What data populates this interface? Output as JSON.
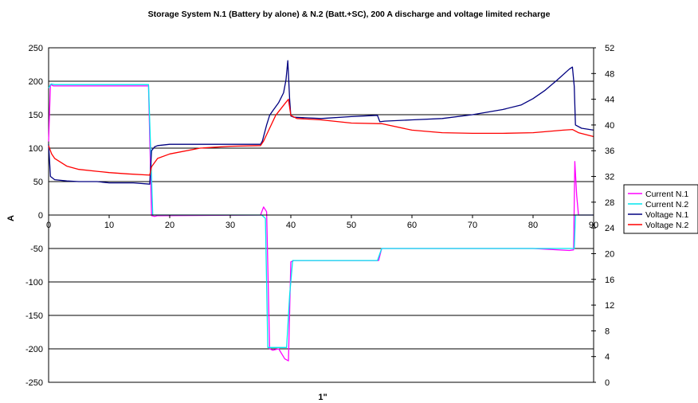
{
  "chart_data": {
    "type": "line",
    "title": "Storage System N.1 (Battery by alone) & N.2 (Batt.+SC), 200 A discharge and voltage limited recharge",
    "xlabel": "1\"",
    "ylabel": "A",
    "y2label": "",
    "xlim": [
      0,
      90
    ],
    "ylim": [
      -250,
      250
    ],
    "y2lim": [
      0,
      52
    ],
    "x_ticks": [
      0,
      10,
      20,
      30,
      40,
      50,
      60,
      70,
      80,
      90
    ],
    "y_ticks": [
      -250,
      -200,
      -150,
      -100,
      -50,
      0,
      50,
      100,
      150,
      200,
      250
    ],
    "y2_ticks": [
      0,
      4,
      8,
      12,
      16,
      20,
      24,
      28,
      32,
      36,
      40,
      44,
      48,
      52
    ],
    "grid": "horizontal",
    "legend_position": "right",
    "series": [
      {
        "name": "Current N.1",
        "axis": "left",
        "color": "#ff00ff",
        "x": [
          0,
          0.3,
          0.8,
          16.5,
          17.0,
          17.5,
          18,
          35,
          35.5,
          36,
          36.5,
          37,
          38,
          39,
          39.6,
          40.0,
          40.5,
          54.5,
          55,
          80,
          86.0,
          86.7,
          86.9,
          87.2,
          87.5,
          88,
          90
        ],
        "y": [
          110,
          195,
          193,
          193,
          -1,
          -2,
          -1,
          0,
          12,
          5,
          -200,
          -202,
          -200,
          -215,
          -218,
          -70,
          -68,
          -68,
          -50,
          -50,
          -53,
          -52,
          80,
          30,
          0,
          0,
          0
        ]
      },
      {
        "name": "Current N.2",
        "axis": "left",
        "color": "#00e5ee",
        "x": [
          0,
          0.4,
          1,
          16.5,
          17.2,
          18,
          35.2,
          35.8,
          36.2,
          37,
          39.3,
          39.8,
          40.3,
          54.3,
          55,
          86.5,
          86.8,
          87.0,
          90
        ],
        "y": [
          190,
          196,
          195,
          195,
          0,
          0,
          0,
          -5,
          -198,
          -198,
          -198,
          -120,
          -68,
          -68,
          -50,
          -50,
          -50,
          0,
          0
        ]
      },
      {
        "name": "Voltage N.1",
        "axis": "right",
        "color": "#000080",
        "x": [
          0,
          0.3,
          1,
          3,
          5,
          8,
          10,
          14,
          16.7,
          17.0,
          17.5,
          18,
          20,
          25,
          30,
          35,
          35.3,
          36,
          36.5,
          37,
          38,
          38.8,
          39.2,
          39.5,
          39.8,
          40.0,
          40.5,
          45,
          50,
          54.3,
          54.7,
          55.5,
          60,
          65,
          70,
          75,
          78,
          80,
          82,
          84,
          86,
          86.5,
          86.8,
          87,
          88,
          90
        ],
        "y": [
          37,
          32,
          31.5,
          31.3,
          31.2,
          31.2,
          31.0,
          31.0,
          30.8,
          36.0,
          36.6,
          36.8,
          37.0,
          37.0,
          37.0,
          37.0,
          37.5,
          40.0,
          41.5,
          42.2,
          43.5,
          45.0,
          47.0,
          50.0,
          44.0,
          41.4,
          41.2,
          41.0,
          41.3,
          41.5,
          40.5,
          40.6,
          40.8,
          41.0,
          41.6,
          42.4,
          43.1,
          44.1,
          45.4,
          47.0,
          48.7,
          49.0,
          46.0,
          40.0,
          39.5,
          39.2
        ]
      },
      {
        "name": "Voltage N.2",
        "axis": "right",
        "color": "#ff0000",
        "x": [
          0,
          0.5,
          1,
          3,
          5,
          8,
          10,
          13,
          16.7,
          17.0,
          18,
          20,
          25,
          30,
          35,
          35.5,
          36.5,
          37.5,
          39.0,
          39.6,
          40,
          41,
          45,
          50,
          55,
          60,
          65,
          70,
          75,
          80,
          85,
          86.5,
          87.5,
          90
        ],
        "y": [
          36.8,
          35.5,
          34.8,
          33.6,
          33.1,
          32.8,
          32.6,
          32.4,
          32.2,
          33.5,
          34.8,
          35.5,
          36.4,
          36.7,
          36.8,
          37.5,
          39.5,
          41.5,
          43.3,
          44.0,
          41.5,
          41.0,
          40.8,
          40.3,
          40.2,
          39.2,
          38.8,
          38.7,
          38.7,
          38.8,
          39.2,
          39.3,
          38.8,
          38.2
        ]
      }
    ]
  }
}
